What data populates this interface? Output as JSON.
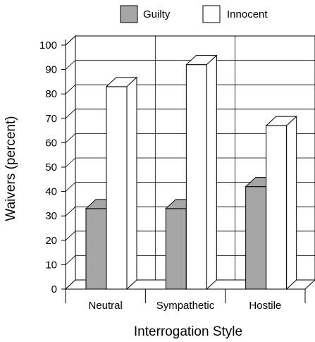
{
  "chart_data": {
    "type": "bar",
    "title": "",
    "xlabel": "Interrogation Style",
    "ylabel": "Waivers (percent)",
    "ylim": [
      0,
      100
    ],
    "yticks": [
      0,
      10,
      20,
      30,
      40,
      50,
      60,
      70,
      80,
      90,
      100
    ],
    "categories": [
      "Neutral",
      "Sympathetic",
      "Hostile"
    ],
    "series": [
      {
        "name": "Guilty",
        "values": [
          33,
          33,
          42
        ],
        "color": "#a6a6a6"
      },
      {
        "name": "Innocent",
        "values": [
          83,
          92,
          67
        ],
        "color": "#ffffff"
      }
    ],
    "legend_position": "top",
    "grid": true,
    "style": "3d"
  }
}
